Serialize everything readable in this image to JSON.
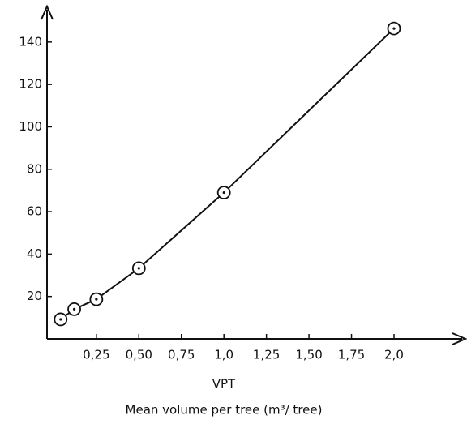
{
  "chart_data": {
    "type": "line",
    "x_label": "VPT",
    "x_label_2": "Mean volume per tree (m³/ tree)",
    "x": [
      0.04,
      0.12,
      0.25,
      0.5,
      1.0,
      2.0
    ],
    "series": [
      {
        "color": "#111111",
        "values": [
          9.2,
          14,
          18.7,
          33.3,
          69,
          146.4
        ]
      }
    ],
    "xlim": [
      -0.04,
      2.41
    ],
    "ylim": [
      0,
      156
    ],
    "xticks": [
      {
        "value": 0.25,
        "label": "0,25"
      },
      {
        "value": 0.5,
        "label": "0,50"
      },
      {
        "value": 0.75,
        "label": "0,75"
      },
      {
        "value": 1.0,
        "label": "1,0"
      },
      {
        "value": 1.25,
        "label": "1,25"
      },
      {
        "value": 1.5,
        "label": "1,50"
      },
      {
        "value": 1.75,
        "label": "1,75"
      },
      {
        "value": 2.0,
        "label": "2,0"
      }
    ],
    "yticks": [
      20,
      40,
      60,
      80,
      100,
      120,
      140
    ],
    "grid": false
  }
}
